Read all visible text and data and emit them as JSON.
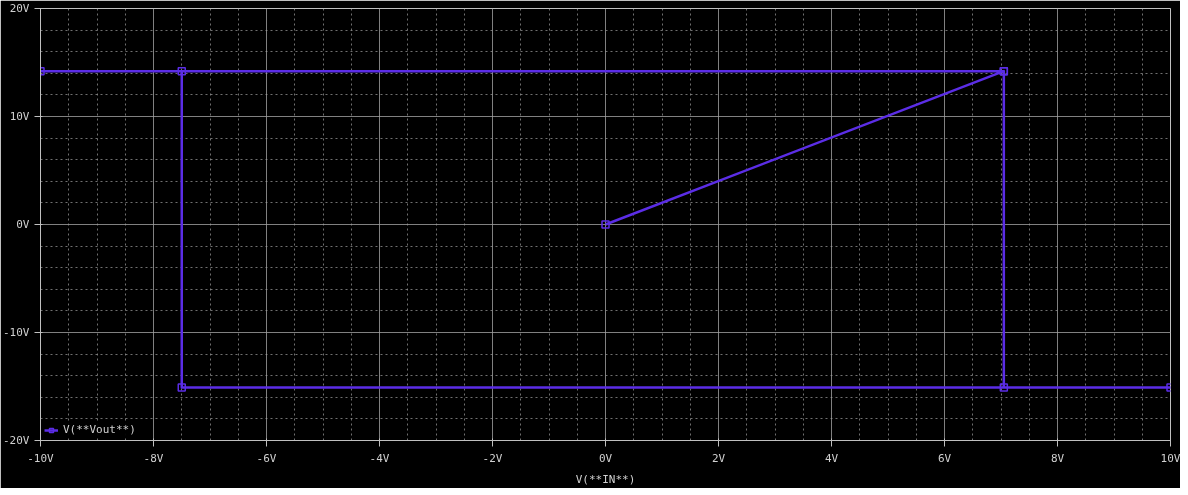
{
  "chart_data": {
    "type": "line",
    "xlabel": "V(**IN**)",
    "x": [
      0,
      7.05,
      7.05,
      10,
      -7.5,
      -7.5,
      -10,
      7.05
    ],
    "series": [
      {
        "name": "V(**Vout**)",
        "color": "#5b2de6",
        "values": [
          0,
          14.2,
          -15.1,
          -15.1,
          -15.1,
          14.2,
          14.2,
          14.2
        ]
      }
    ],
    "xlim": [
      -10,
      10
    ],
    "ylim": [
      -20,
      20
    ],
    "xticks": [
      {
        "value": -10,
        "label": "-10V"
      },
      {
        "value": -8,
        "label": "-8V"
      },
      {
        "value": -6,
        "label": "-6V"
      },
      {
        "value": -4,
        "label": "-4V"
      },
      {
        "value": -2,
        "label": "-2V"
      },
      {
        "value": 0,
        "label": "0V"
      },
      {
        "value": 2,
        "label": "2V"
      },
      {
        "value": 4,
        "label": "4V"
      },
      {
        "value": 6,
        "label": "6V"
      },
      {
        "value": 8,
        "label": "8V"
      },
      {
        "value": 10,
        "label": "10V"
      }
    ],
    "yticks": [
      {
        "value": -20,
        "label": "-20V"
      },
      {
        "value": -10,
        "label": "-10V"
      },
      {
        "value": 0,
        "label": "0V"
      },
      {
        "value": 10,
        "label": "10V"
      },
      {
        "value": 20,
        "label": "20V"
      }
    ],
    "grid": true,
    "legend": "bottom left",
    "marker": "square",
    "line_style": "solid"
  }
}
